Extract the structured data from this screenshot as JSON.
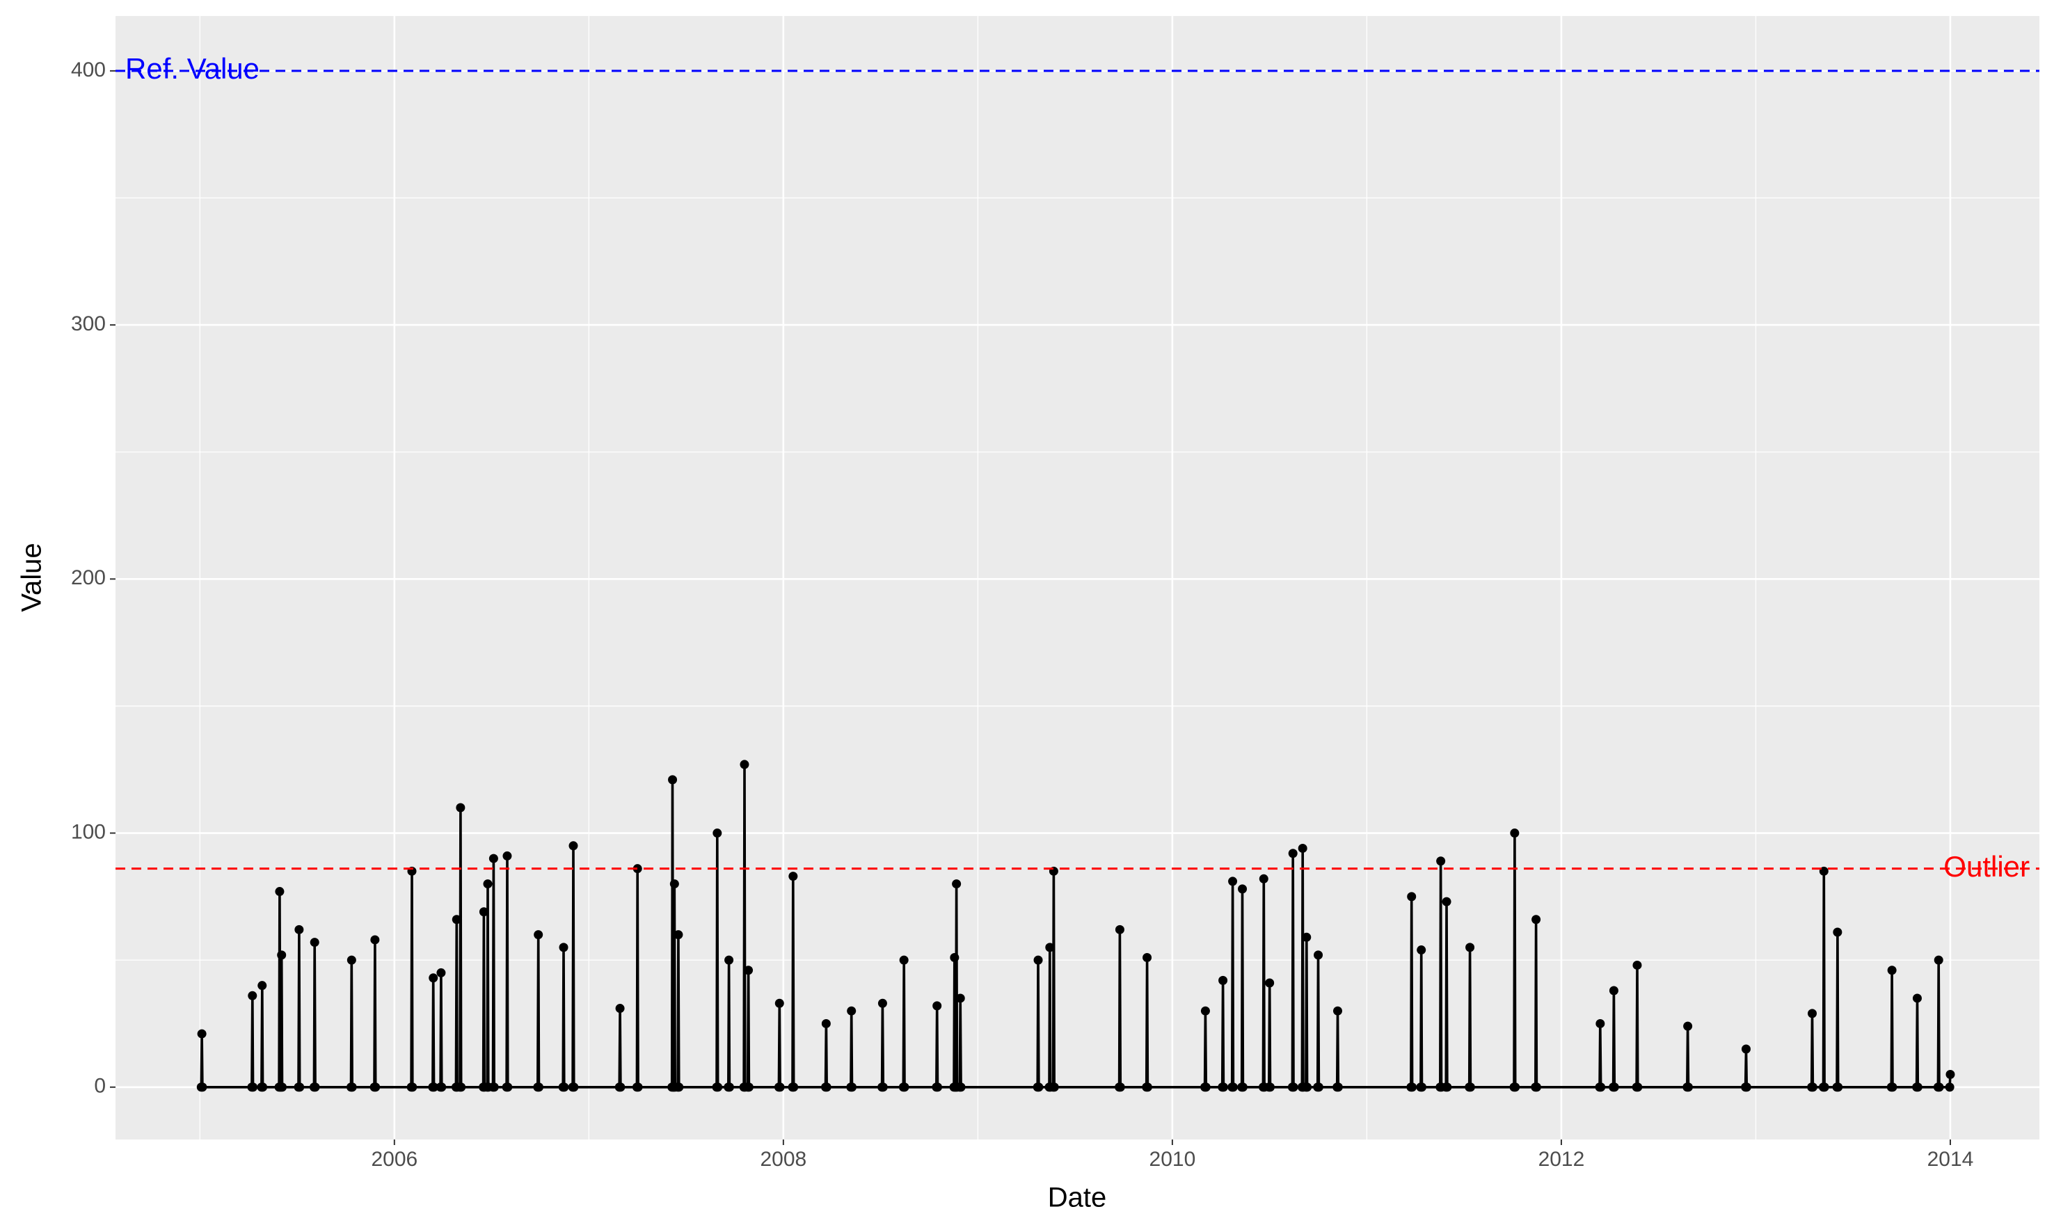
{
  "chart_data": {
    "type": "line",
    "x_label": "Date",
    "y_label": "Value",
    "color": "#000000",
    "markers": true,
    "grid": true,
    "xlim": [
      2004.566,
      2014.458
    ],
    "ylim": [
      -20.6,
      421.6
    ],
    "xticks": [
      2006,
      2008,
      2010,
      2012,
      2014
    ],
    "yticks": [
      0,
      100,
      200,
      300,
      400
    ],
    "reference_lines": [
      {
        "label": "Ref. Value",
        "value": 400,
        "color": "#0000ff",
        "label_position": "left"
      },
      {
        "label": "Outlier",
        "value": 86,
        "color": "#ff0000",
        "label_position": "right"
      }
    ],
    "x": [
      2005.007,
      2005.01,
      2005.013,
      2005.267,
      2005.27,
      2005.273,
      2005.317,
      2005.32,
      2005.323,
      2005.407,
      2005.41,
      2005.413,
      2005.417,
      2005.42,
      2005.423,
      2005.507,
      2005.51,
      2005.513,
      2005.587,
      2005.59,
      2005.593,
      2005.777,
      2005.78,
      2005.783,
      2005.897,
      2005.9,
      2005.903,
      2006.087,
      2006.09,
      2006.093,
      2006.197,
      2006.2,
      2006.203,
      2006.237,
      2006.24,
      2006.243,
      2006.317,
      2006.32,
      2006.323,
      2006.337,
      2006.34,
      2006.343,
      2006.457,
      2006.46,
      2006.463,
      2006.477,
      2006.48,
      2006.483,
      2006.507,
      2006.51,
      2006.513,
      2006.577,
      2006.58,
      2006.583,
      2006.737,
      2006.74,
      2006.743,
      2006.867,
      2006.87,
      2006.873,
      2006.917,
      2006.92,
      2006.923,
      2007.157,
      2007.16,
      2007.163,
      2007.247,
      2007.25,
      2007.253,
      2007.427,
      2007.43,
      2007.433,
      2007.437,
      2007.44,
      2007.443,
      2007.457,
      2007.46,
      2007.463,
      2007.657,
      2007.66,
      2007.663,
      2007.717,
      2007.72,
      2007.723,
      2007.797,
      2007.8,
      2007.803,
      2007.817,
      2007.82,
      2007.823,
      2007.977,
      2007.98,
      2007.983,
      2008.047,
      2008.05,
      2008.053,
      2008.217,
      2008.22,
      2008.223,
      2008.347,
      2008.35,
      2008.353,
      2008.507,
      2008.51,
      2008.513,
      2008.617,
      2008.62,
      2008.623,
      2008.787,
      2008.79,
      2008.793,
      2008.877,
      2008.88,
      2008.883,
      2008.887,
      2008.89,
      2008.893,
      2008.907,
      2008.91,
      2008.913,
      2009.307,
      2009.31,
      2009.313,
      2009.367,
      2009.37,
      2009.373,
      2009.387,
      2009.39,
      2009.393,
      2009.727,
      2009.73,
      2009.733,
      2009.867,
      2009.87,
      2009.873,
      2010.167,
      2010.17,
      2010.173,
      2010.257,
      2010.26,
      2010.263,
      2010.307,
      2010.31,
      2010.313,
      2010.357,
      2010.36,
      2010.363,
      2010.467,
      2010.47,
      2010.473,
      2010.497,
      2010.5,
      2010.503,
      2010.617,
      2010.62,
      2010.623,
      2010.667,
      2010.67,
      2010.673,
      2010.687,
      2010.69,
      2010.693,
      2010.747,
      2010.75,
      2010.753,
      2010.847,
      2010.85,
      2010.853,
      2011.227,
      2011.23,
      2011.233,
      2011.277,
      2011.28,
      2011.283,
      2011.377,
      2011.38,
      2011.383,
      2011.407,
      2011.41,
      2011.413,
      2011.527,
      2011.53,
      2011.533,
      2011.757,
      2011.76,
      2011.763,
      2011.867,
      2011.87,
      2011.873,
      2012.197,
      2012.2,
      2012.203,
      2012.267,
      2012.27,
      2012.273,
      2012.387,
      2012.39,
      2012.393,
      2012.647,
      2012.65,
      2012.653,
      2012.947,
      2012.95,
      2012.953,
      2013.287,
      2013.29,
      2013.293,
      2013.347,
      2013.35,
      2013.353,
      2013.417,
      2013.42,
      2013.423,
      2013.697,
      2013.7,
      2013.703,
      2013.827,
      2013.83,
      2013.833,
      2013.937,
      2013.94,
      2013.943,
      2013.997,
      2014.0
    ],
    "values": [
      0,
      21,
      0,
      0,
      36,
      0,
      0,
      40,
      0,
      0,
      77,
      0,
      0,
      52,
      0,
      0,
      62,
      0,
      0,
      57,
      0,
      0,
      50,
      0,
      0,
      58,
      0,
      0,
      85,
      0,
      0,
      43,
      0,
      0,
      45,
      0,
      0,
      66,
      0,
      0,
      110,
      0,
      0,
      69,
      0,
      0,
      80,
      0,
      0,
      90,
      0,
      0,
      91,
      0,
      0,
      60,
      0,
      0,
      55,
      0,
      0,
      95,
      0,
      0,
      31,
      0,
      0,
      86,
      0,
      0,
      121,
      0,
      0,
      80,
      0,
      0,
      60,
      0,
      0,
      100,
      0,
      0,
      50,
      0,
      0,
      127,
      0,
      0,
      46,
      0,
      0,
      33,
      0,
      0,
      83,
      0,
      0,
      25,
      0,
      0,
      30,
      0,
      0,
      33,
      0,
      0,
      50,
      0,
      0,
      32,
      0,
      0,
      51,
      0,
      0,
      80,
      0,
      0,
      35,
      0,
      0,
      50,
      0,
      0,
      55,
      0,
      0,
      85,
      0,
      0,
      62,
      0,
      0,
      51,
      0,
      0,
      30,
      0,
      0,
      42,
      0,
      0,
      81,
      0,
      0,
      78,
      0,
      0,
      82,
      0,
      0,
      41,
      0,
      0,
      92,
      0,
      0,
      94,
      0,
      0,
      59,
      0,
      0,
      52,
      0,
      0,
      30,
      0,
      0,
      75,
      0,
      0,
      54,
      0,
      0,
      89,
      0,
      0,
      73,
      0,
      0,
      55,
      0,
      0,
      100,
      0,
      0,
      66,
      0,
      0,
      25,
      0,
      0,
      38,
      0,
      0,
      48,
      0,
      0,
      24,
      0,
      0,
      15,
      0,
      0,
      29,
      0,
      0,
      85,
      0,
      0,
      61,
      0,
      0,
      46,
      0,
      0,
      35,
      0,
      0,
      50,
      0,
      0,
      5
    ]
  }
}
